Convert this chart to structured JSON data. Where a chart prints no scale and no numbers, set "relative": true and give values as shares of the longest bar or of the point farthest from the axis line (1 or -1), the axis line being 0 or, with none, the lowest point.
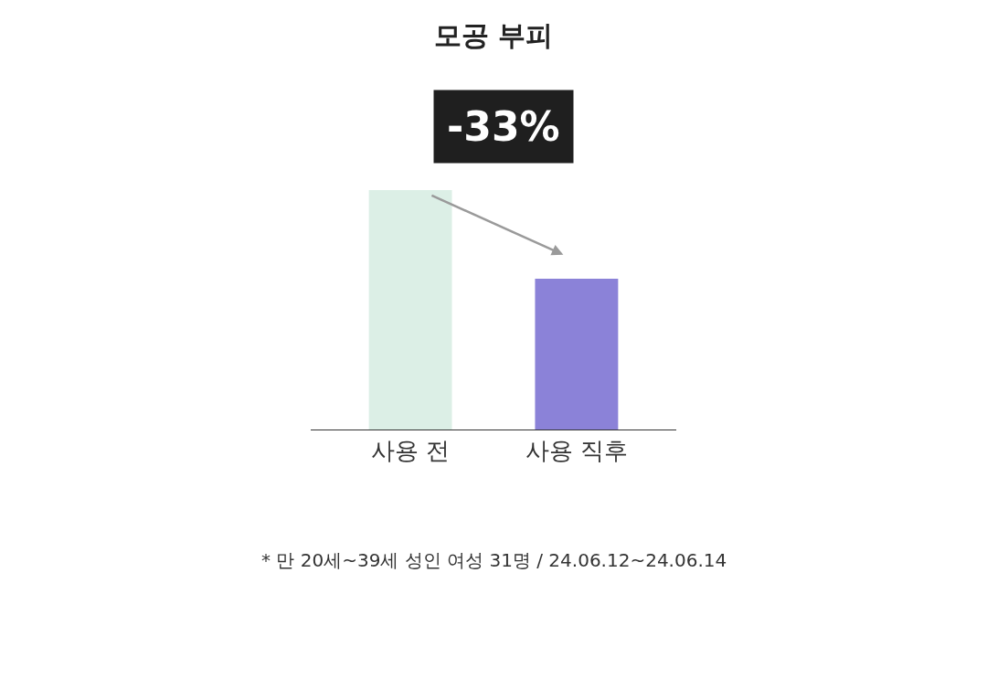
{
  "chart_data": {
    "type": "bar",
    "title": "모공 부피",
    "relative": true,
    "categories": [
      "사용 전",
      "사용 직후"
    ],
    "values": [
      1,
      0.63
    ],
    "colors": [
      "#dcefe6",
      "#8b82d8"
    ],
    "annotations": [
      "-33%",
      "* 만 20세~39세 성인 여성 31명 / 24.06.12~24.06.14"
    ]
  }
}
